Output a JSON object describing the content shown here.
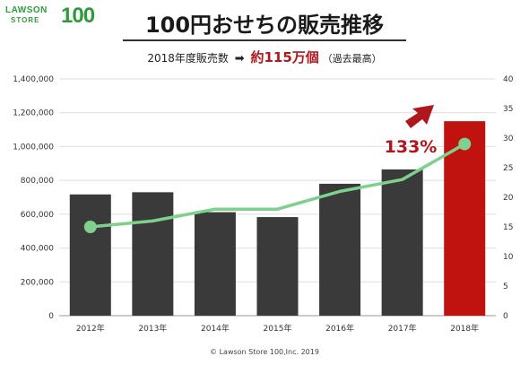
{
  "logo": {
    "line1": "LAWSON",
    "line2": "STORE",
    "number": "100"
  },
  "title": "100円おせちの販売推移",
  "subtitle": {
    "prefix": "2018年度販売数",
    "arrow": "➡",
    "highlight": "約115万個",
    "note": "（過去最高）"
  },
  "copyright": "© Lawson Store 100,Inc. 2019",
  "colors": {
    "bar_dark": "#3a3a3a",
    "bar_highlight": "#c0130f",
    "line": "#7fd08e",
    "accent_red": "#b0171c"
  },
  "chart_data": {
    "type": "bar",
    "categories": [
      "2012年",
      "2013年",
      "2014年",
      "2015年",
      "2016年",
      "2017年",
      "2018年"
    ],
    "series": [
      {
        "values": [
          717000,
          730000,
          612000,
          583000,
          780000,
          865000,
          1150000
        ]
      },
      {
        "type": "line",
        "axis": "right",
        "values": [
          15,
          16,
          18,
          18,
          21,
          23,
          29
        ]
      }
    ],
    "left_axis": {
      "ticks": [
        "0",
        "200,000",
        "400,000",
        "600,000",
        "800,000",
        "1,000,000",
        "1,200,000",
        "1,400,000"
      ],
      "ylim": [
        0,
        1400000
      ]
    },
    "right_axis": {
      "ticks": [
        "0",
        "5",
        "10",
        "15",
        "20",
        "25",
        "30",
        "35",
        "40"
      ],
      "ylim": [
        0,
        40
      ]
    },
    "annotation": "133%",
    "highlight_index": 6,
    "grid": true
  }
}
